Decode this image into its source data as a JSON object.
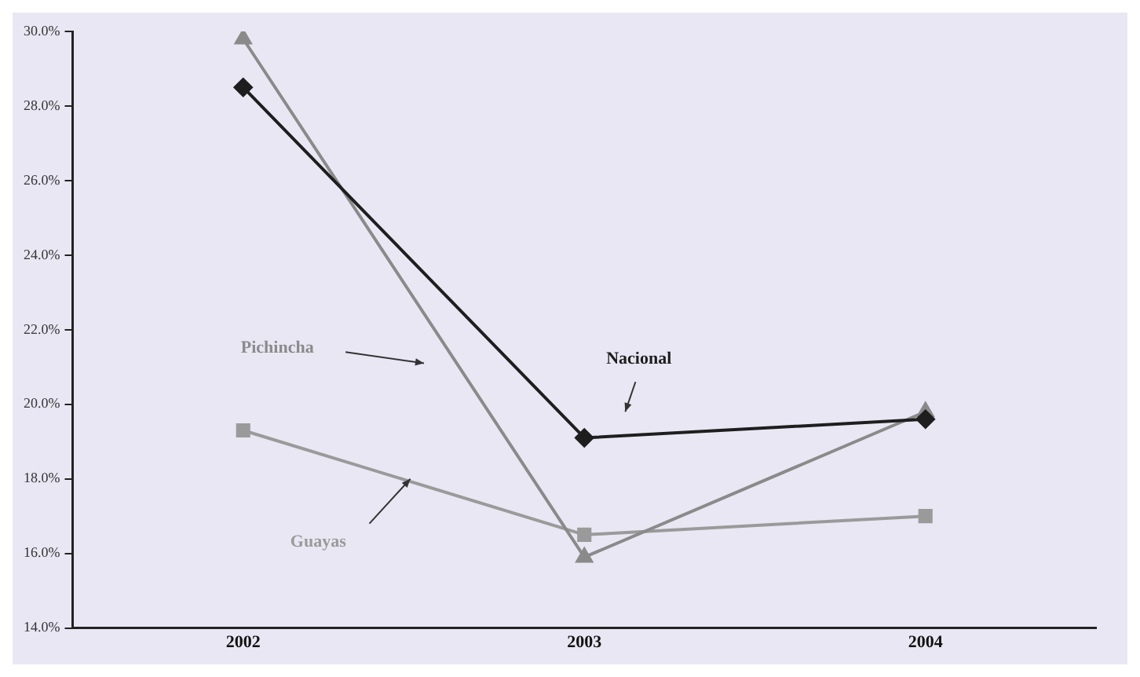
{
  "chart_data": {
    "type": "line",
    "categories": [
      "2002",
      "2003",
      "2004"
    ],
    "series": [
      {
        "name": "Nacional",
        "color": "#1e1e1e",
        "marker": "diamond",
        "values": [
          28.5,
          19.1,
          19.6
        ]
      },
      {
        "name": "Pichincha",
        "color": "#8a8a8a",
        "marker": "triangle",
        "values": [
          29.8,
          15.9,
          19.8
        ]
      },
      {
        "name": "Guayas",
        "color": "#9a9a9a",
        "marker": "square",
        "values": [
          19.3,
          16.5,
          17.0
        ]
      }
    ],
    "ylim": [
      14,
      30
    ],
    "yticks": [
      {
        "value": 14,
        "label": "14.0%"
      },
      {
        "value": 16,
        "label": "16.0%"
      },
      {
        "value": 18,
        "label": "18.0%"
      },
      {
        "value": 20,
        "label": "20.0%"
      },
      {
        "value": 22,
        "label": "22.0%"
      },
      {
        "value": 24,
        "label": "24.0%"
      },
      {
        "value": 26,
        "label": "26.0%"
      },
      {
        "value": 28,
        "label": "28.0%"
      },
      {
        "value": 30,
        "label": "30.0%"
      }
    ],
    "grid": false,
    "legend": false,
    "line_style": "solid"
  }
}
